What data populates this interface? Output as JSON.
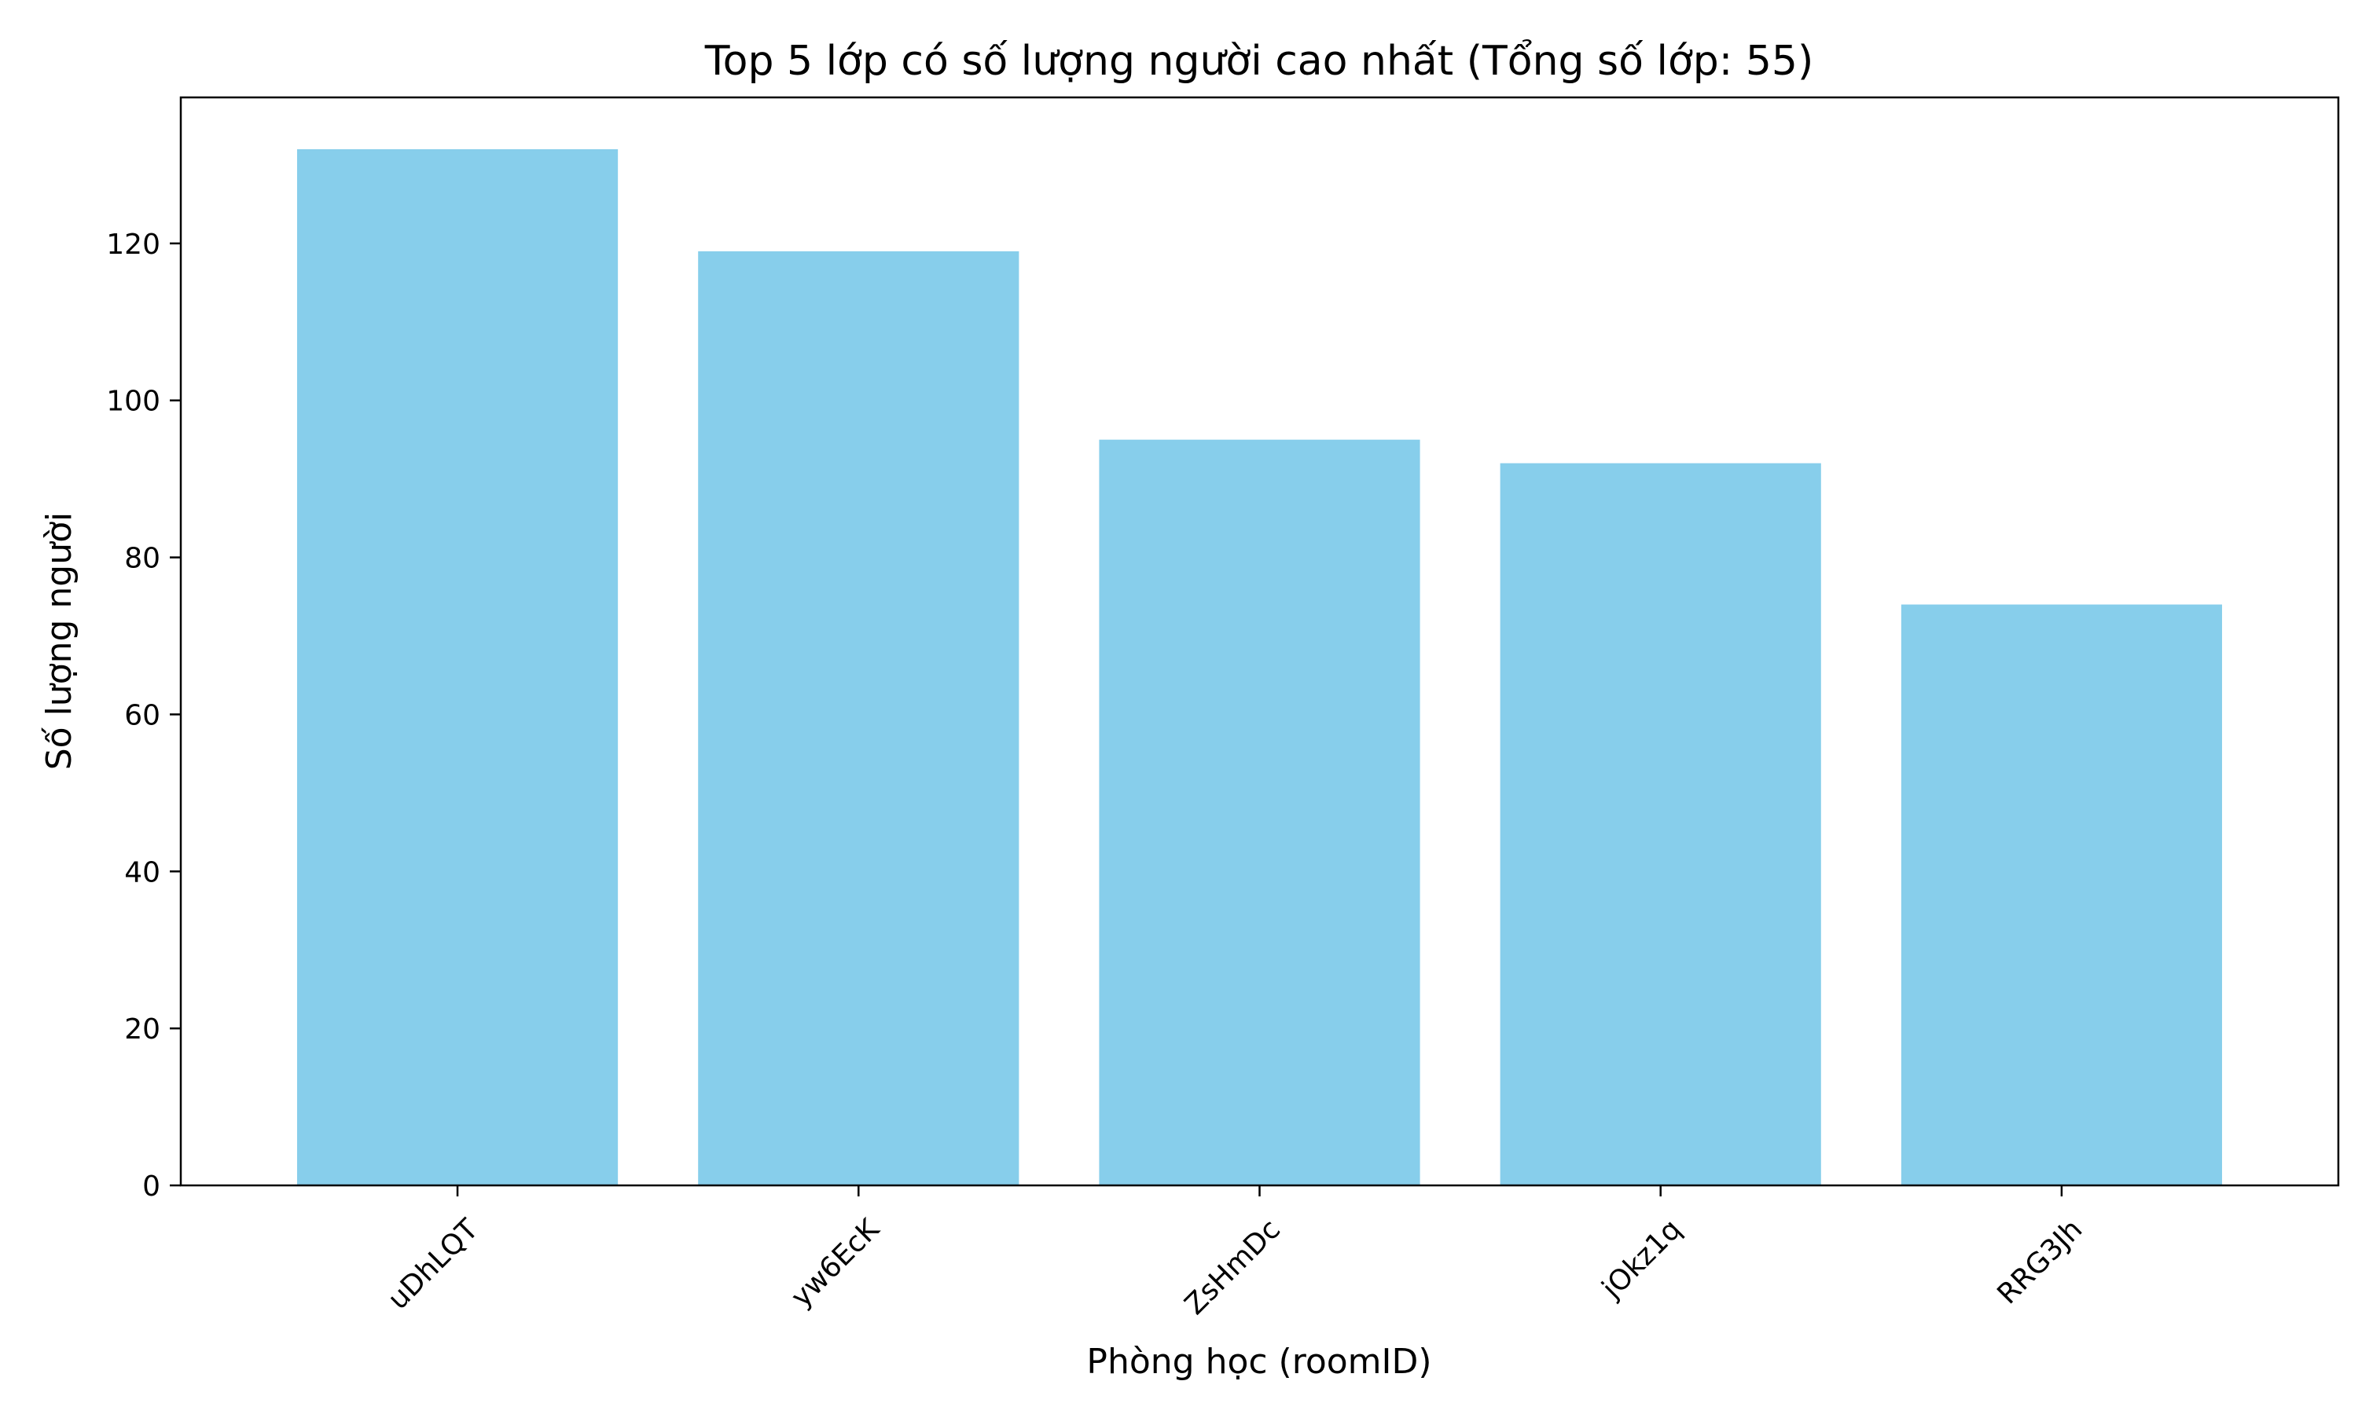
{
  "chart_data": {
    "type": "bar",
    "title": "Top 5 lớp có số lượng người cao nhất (Tổng số lớp: 55)",
    "xlabel": "Phòng học (roomID)",
    "ylabel": "Số lượng người",
    "categories": [
      "uDhLQT",
      "yw6EcK",
      "ZsHmDc",
      "jOkz1q",
      "RRG3Jh"
    ],
    "values": [
      132,
      119,
      95,
      92,
      74
    ],
    "ylim": [
      0,
      138.6
    ],
    "yticks": [
      "0",
      "20",
      "40",
      "60",
      "80",
      "100",
      "120"
    ],
    "grid": false,
    "legend": "none",
    "bar_color": "#87CEEB",
    "x_tick_rotation": 45
  }
}
